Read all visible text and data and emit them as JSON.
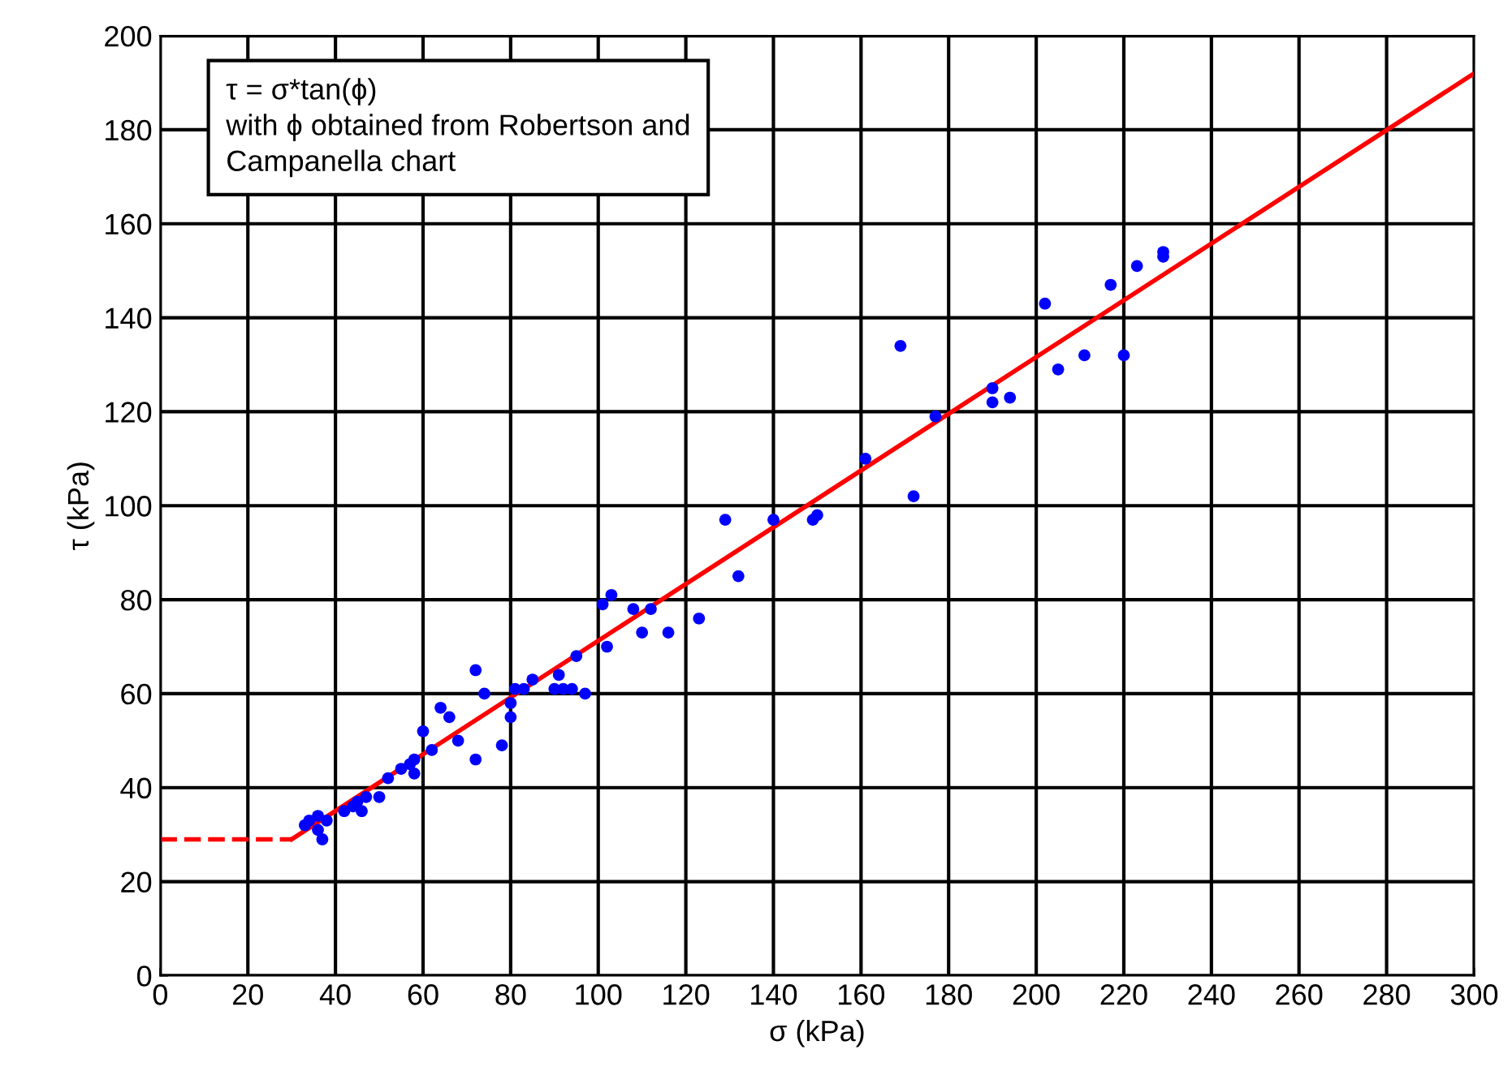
{
  "chart_data": {
    "type": "scatter",
    "xlabel": "σ (kPa)",
    "ylabel": "τ (kPa)",
    "annotations": [
      "τ = σ*tan(ϕ)\nwith ϕ obtained from Robertson and\nCampanella chart"
    ],
    "xlim": [
      0,
      300
    ],
    "xticks": [
      0,
      20,
      40,
      60,
      80,
      100,
      120,
      140,
      160,
      180,
      200,
      220,
      240,
      260,
      280,
      300
    ],
    "ylim": [
      0,
      200
    ],
    "yticks": [
      0,
      20,
      40,
      60,
      80,
      100,
      120,
      140,
      160,
      180,
      200
    ],
    "grid": true,
    "legend": false,
    "series": [
      {
        "color": "#0000ff",
        "marker": "circle",
        "x": [
          33,
          34,
          36,
          36,
          37,
          38,
          42,
          44,
          45,
          46,
          47,
          50,
          52,
          55,
          57,
          58,
          58,
          60,
          62,
          64,
          66,
          68,
          72,
          72,
          74,
          78,
          80,
          80,
          81,
          83,
          85,
          90,
          91,
          92,
          94,
          95,
          97,
          101,
          102,
          103,
          108,
          110,
          112,
          116,
          123,
          129,
          132,
          140,
          149,
          150,
          161,
          169,
          172,
          177,
          190,
          190,
          194,
          202,
          205,
          211,
          217,
          220,
          223,
          229,
          229
        ],
        "values": [
          32,
          33,
          34,
          31,
          29,
          33,
          35,
          36,
          37,
          35,
          38,
          38,
          42,
          44,
          45,
          43,
          46,
          52,
          48,
          57,
          55,
          50,
          46,
          65,
          60,
          49,
          55,
          58,
          61,
          61,
          63,
          61,
          64,
          61,
          61,
          68,
          60,
          79,
          70,
          81,
          78,
          73,
          78,
          73,
          76,
          97,
          85,
          97,
          97,
          98,
          110,
          134,
          102,
          119,
          125,
          122,
          123,
          143,
          129,
          132,
          147,
          132,
          151,
          153,
          154
        ]
      },
      {
        "type": "line",
        "color": "#ff0000",
        "line_style": "solid",
        "marker": "none",
        "x": [
          30,
          300
        ],
        "values": [
          29,
          192
        ]
      },
      {
        "type": "line",
        "color": "#ff0000",
        "line_style": "dashed",
        "marker": "none",
        "x": [
          0,
          30
        ],
        "values": [
          29,
          29
        ]
      }
    ]
  }
}
